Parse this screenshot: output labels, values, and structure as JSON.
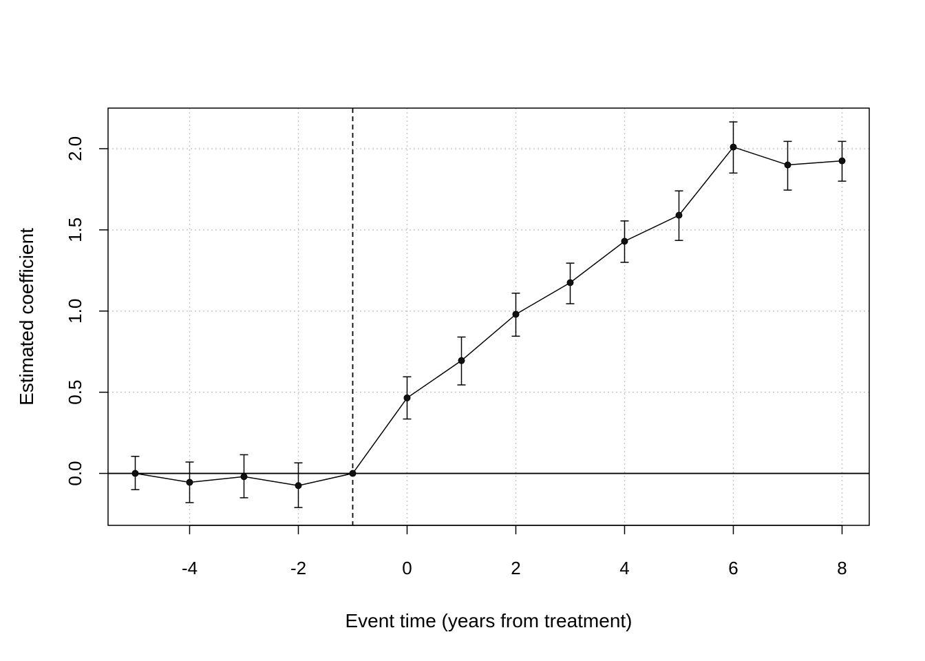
{
  "chart_data": {
    "type": "line",
    "title": "",
    "xlabel": "Event time (years from treatment)",
    "ylabel": "Estimated coefficient",
    "xlim": [
      -5.5,
      8.5
    ],
    "ylim": [
      -0.32,
      2.25
    ],
    "xticks": [
      -4,
      -2,
      0,
      2,
      4,
      6,
      8
    ],
    "xtick_labels": [
      "-4",
      "-2",
      "0",
      "2",
      "4",
      "6",
      "8"
    ],
    "yticks": [
      0.0,
      0.5,
      1.0,
      1.5,
      2.0
    ],
    "ytick_labels": [
      "0.0",
      "0.5",
      "1.0",
      "1.5",
      "2.0"
    ],
    "grid": true,
    "reference_lines": {
      "horizontal_y": 0,
      "vertical_dashed_x": -1
    },
    "series": [
      {
        "x": [
          -5,
          -4,
          -3,
          -2,
          -1,
          0,
          1,
          2,
          3,
          4,
          5,
          6,
          7,
          8
        ],
        "y": [
          0.0,
          -0.055,
          -0.02,
          -0.075,
          0.0,
          0.465,
          0.695,
          0.98,
          1.175,
          1.43,
          1.59,
          2.01,
          1.9,
          1.925
        ],
        "lower": [
          -0.1,
          -0.18,
          -0.15,
          -0.21,
          0.0,
          0.335,
          0.545,
          0.845,
          1.045,
          1.3,
          1.435,
          1.85,
          1.745,
          1.8
        ],
        "upper": [
          0.105,
          0.07,
          0.115,
          0.065,
          0.0,
          0.595,
          0.84,
          1.11,
          1.295,
          1.555,
          1.74,
          2.165,
          2.045,
          2.045
        ]
      }
    ]
  }
}
